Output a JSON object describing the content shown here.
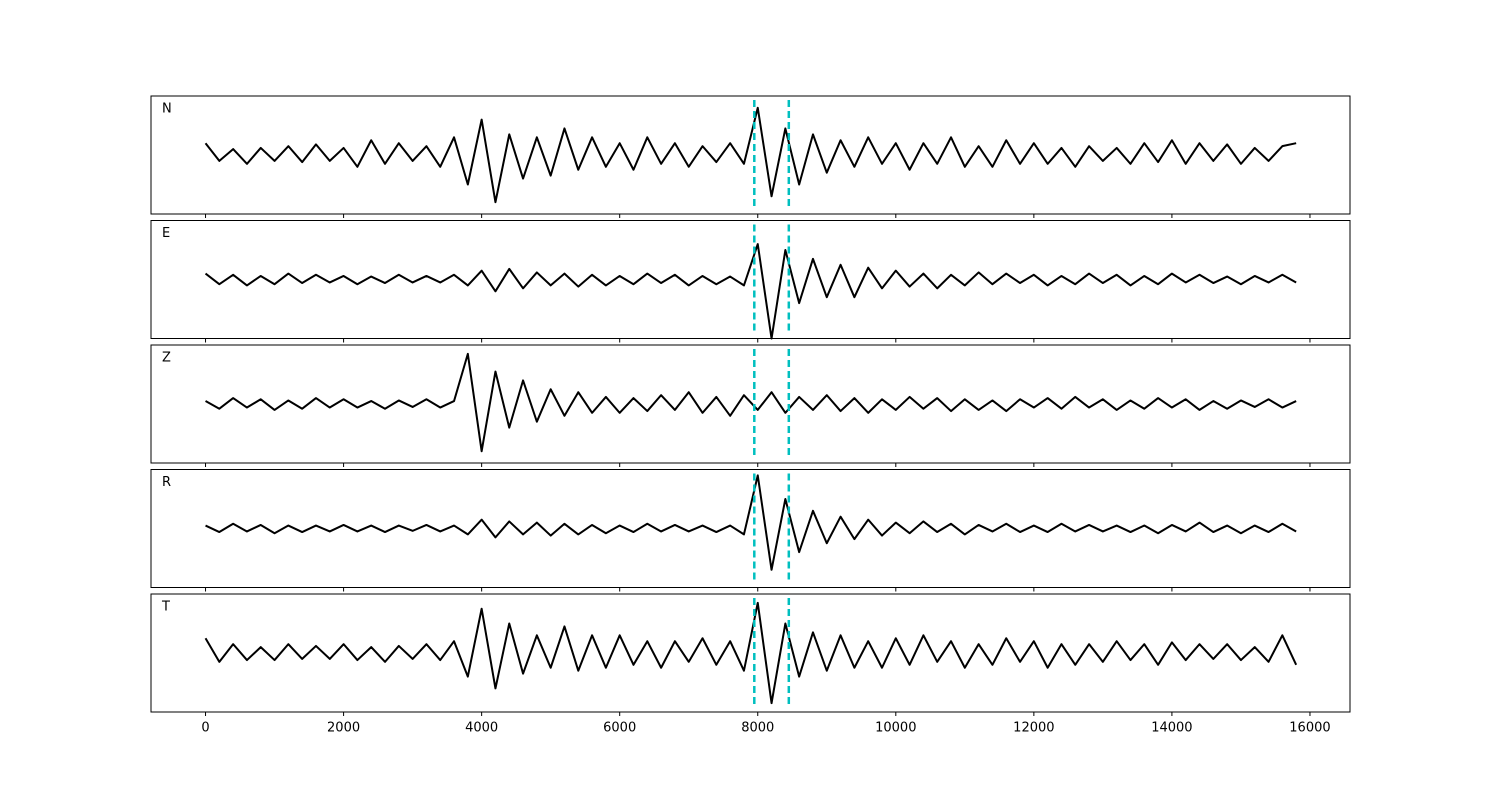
{
  "chart_data": {
    "type": "line",
    "x": [
      0,
      200,
      400,
      600,
      800,
      1000,
      1200,
      1400,
      1600,
      1800,
      2000,
      2200,
      2400,
      2600,
      2800,
      3000,
      3200,
      3400,
      3600,
      3800,
      4000,
      4200,
      4400,
      4600,
      4800,
      5000,
      5200,
      5400,
      5600,
      5800,
      6000,
      6200,
      6400,
      6600,
      6800,
      7000,
      7200,
      7400,
      7600,
      7800,
      8000,
      8200,
      8400,
      8600,
      8800,
      9000,
      9200,
      9400,
      9600,
      9800,
      10000,
      10200,
      10400,
      10600,
      10800,
      11000,
      11200,
      11400,
      11600,
      11800,
      12000,
      12200,
      12400,
      12600,
      12800,
      13000,
      13200,
      13400,
      13600,
      13800,
      14000,
      14200,
      14400,
      14600,
      14800,
      15000,
      15200,
      15400,
      15600,
      15800
    ],
    "series": [
      {
        "name": "N",
        "color": "#000000",
        "values": [
          0.2,
          -0.1,
          0.1,
          -0.15,
          0.12,
          -0.1,
          0.15,
          -0.12,
          0.18,
          -0.1,
          0.12,
          -0.2,
          0.25,
          -0.15,
          0.2,
          -0.1,
          0.15,
          -0.2,
          0.3,
          -0.5,
          0.6,
          -0.8,
          0.35,
          -0.4,
          0.3,
          -0.35,
          0.45,
          -0.25,
          0.3,
          -0.2,
          0.2,
          -0.25,
          0.3,
          -0.15,
          0.2,
          -0.2,
          0.15,
          -0.12,
          0.2,
          -0.15,
          0.8,
          -0.7,
          0.45,
          -0.5,
          0.35,
          -0.3,
          0.25,
          -0.2,
          0.3,
          -0.15,
          0.2,
          -0.25,
          0.2,
          -0.15,
          0.3,
          -0.2,
          0.15,
          -0.2,
          0.25,
          -0.15,
          0.2,
          -0.15,
          0.12,
          -0.2,
          0.15,
          -0.1,
          0.12,
          -0.15,
          0.2,
          -0.12,
          0.25,
          -0.15,
          0.2,
          -0.1,
          0.18,
          -0.15,
          0.12,
          -0.1,
          0.15,
          0.2
        ]
      },
      {
        "name": "E",
        "color": "#000000",
        "values": [
          0.1,
          -0.08,
          0.08,
          -0.1,
          0.06,
          -0.08,
          0.1,
          -0.06,
          0.08,
          -0.05,
          0.06,
          -0.08,
          0.05,
          -0.06,
          0.08,
          -0.05,
          0.06,
          -0.05,
          0.08,
          -0.1,
          0.15,
          -0.2,
          0.18,
          -0.15,
          0.12,
          -0.1,
          0.1,
          -0.12,
          0.08,
          -0.1,
          0.06,
          -0.08,
          0.1,
          -0.06,
          0.08,
          -0.1,
          0.06,
          -0.08,
          0.05,
          -0.1,
          0.6,
          -1.0,
          0.5,
          -0.4,
          0.35,
          -0.3,
          0.25,
          -0.3,
          0.2,
          -0.15,
          0.15,
          -0.12,
          0.1,
          -0.15,
          0.08,
          -0.1,
          0.12,
          -0.08,
          0.1,
          -0.06,
          0.08,
          -0.1,
          0.06,
          -0.08,
          0.1,
          -0.06,
          0.08,
          -0.1,
          0.06,
          -0.08,
          0.1,
          -0.05,
          0.08,
          -0.06,
          0.05,
          -0.08,
          0.06,
          -0.05,
          0.08,
          -0.05
        ]
      },
      {
        "name": "Z",
        "color": "#000000",
        "values": [
          0.05,
          -0.08,
          0.1,
          -0.06,
          0.08,
          -0.1,
          0.06,
          -0.08,
          0.1,
          -0.06,
          0.08,
          -0.06,
          0.05,
          -0.08,
          0.06,
          -0.05,
          0.08,
          -0.06,
          0.05,
          0.85,
          -0.8,
          0.55,
          -0.4,
          0.4,
          -0.3,
          0.25,
          -0.2,
          0.2,
          -0.15,
          0.12,
          -0.15,
          0.1,
          -0.12,
          0.15,
          -0.1,
          0.2,
          -0.15,
          0.12,
          -0.2,
          0.15,
          -0.1,
          0.2,
          -0.15,
          0.12,
          -0.1,
          0.15,
          -0.12,
          0.1,
          -0.15,
          0.08,
          -0.1,
          0.12,
          -0.08,
          0.1,
          -0.12,
          0.08,
          -0.1,
          0.06,
          -0.12,
          0.08,
          -0.06,
          0.1,
          -0.08,
          0.12,
          -0.06,
          0.08,
          -0.1,
          0.06,
          -0.08,
          0.1,
          -0.06,
          0.08,
          -0.1,
          0.05,
          -0.08,
          0.06,
          -0.05,
          0.08,
          -0.06,
          0.05
        ]
      },
      {
        "name": "R",
        "color": "#000000",
        "values": [
          0.05,
          -0.06,
          0.08,
          -0.05,
          0.06,
          -0.08,
          0.05,
          -0.06,
          0.05,
          -0.05,
          0.06,
          -0.05,
          0.05,
          -0.06,
          0.05,
          -0.04,
          0.06,
          -0.05,
          0.05,
          -0.1,
          0.15,
          -0.15,
          0.12,
          -0.1,
          0.1,
          -0.12,
          0.08,
          -0.1,
          0.06,
          -0.08,
          0.05,
          -0.06,
          0.08,
          -0.05,
          0.06,
          -0.05,
          0.05,
          -0.06,
          0.05,
          -0.1,
          0.9,
          -0.7,
          0.5,
          -0.4,
          0.3,
          -0.25,
          0.2,
          -0.18,
          0.15,
          -0.12,
          0.1,
          -0.08,
          0.12,
          -0.06,
          0.08,
          -0.1,
          0.06,
          -0.05,
          0.08,
          -0.06,
          0.05,
          -0.06,
          0.08,
          -0.05,
          0.06,
          -0.05,
          0.05,
          -0.06,
          0.05,
          -0.08,
          0.06,
          -0.05,
          0.1,
          -0.06,
          0.05,
          -0.08,
          0.05,
          -0.06,
          0.08,
          -0.05
        ]
      },
      {
        "name": "T",
        "color": "#000000",
        "values": [
          0.25,
          -0.15,
          0.15,
          -0.12,
          0.1,
          -0.12,
          0.15,
          -0.1,
          0.12,
          -0.1,
          0.15,
          -0.12,
          0.1,
          -0.15,
          0.12,
          -0.1,
          0.15,
          -0.12,
          0.2,
          -0.4,
          0.75,
          -0.6,
          0.5,
          -0.35,
          0.3,
          -0.25,
          0.45,
          -0.3,
          0.3,
          -0.25,
          0.3,
          -0.2,
          0.2,
          -0.25,
          0.2,
          -0.15,
          0.25,
          -0.2,
          0.2,
          -0.3,
          0.85,
          -0.85,
          0.5,
          -0.4,
          0.35,
          -0.3,
          0.3,
          -0.25,
          0.2,
          -0.25,
          0.25,
          -0.2,
          0.3,
          -0.15,
          0.2,
          -0.25,
          0.15,
          -0.2,
          0.25,
          -0.15,
          0.2,
          -0.25,
          0.15,
          -0.2,
          0.15,
          -0.15,
          0.2,
          -0.12,
          0.15,
          -0.2,
          0.18,
          -0.12,
          0.15,
          -0.1,
          0.15,
          -0.12,
          0.1,
          -0.15,
          0.3,
          -0.2
        ]
      }
    ],
    "xlim": [
      -790,
      16580
    ],
    "xticks": [
      0,
      2000,
      4000,
      6000,
      8000,
      10000,
      12000,
      14000,
      16000
    ],
    "ylim": [
      -1,
      1
    ],
    "vlines": [
      7950,
      8450
    ],
    "vline_color": "#00bfbf"
  }
}
